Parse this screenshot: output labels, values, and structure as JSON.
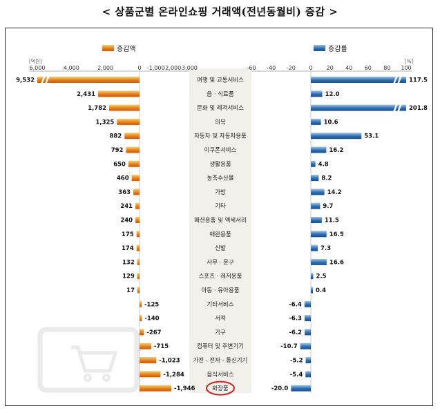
{
  "title": "< 상품군별 온라인쇼핑 거래액(전년동월비) 증감 >",
  "colors": {
    "amount_bar": "#ec7b1c",
    "amount_bar_light": "#f7d35b",
    "rate_bar": "#2b6fb6",
    "rate_bar_light": "#9cc4ec",
    "label_panel": "#f2f0ea",
    "highlight_circle": "#d21e1e"
  },
  "chart_data": [
    {
      "type": "bar",
      "orientation": "horizontal",
      "legend": "증감액",
      "unit": "[억원]",
      "xlim": [
        -3000,
        6000
      ],
      "axis_broken": true,
      "ticks": [
        "6,000",
        "4,000",
        "2,000",
        "0",
        "-1,000",
        "-2,000",
        "-3,000"
      ],
      "tick_values": [
        6000,
        4000,
        2000,
        0,
        -1000,
        -2000,
        -3000
      ],
      "categories": [
        "여행 및 교통서비스",
        "음 · 식료품",
        "문화 및 레저서비스",
        "의복",
        "자동차 및 자동차용품",
        "이쿠폰서비스",
        "생활용품",
        "농축수산물",
        "가방",
        "기타",
        "패션용품 및 액세서리",
        "애완용품",
        "신발",
        "사무 · 문구",
        "스포츠 · 레저용품",
        "아동 · 유아용품",
        "기타서비스",
        "서적",
        "가구",
        "컴퓨터 및 주변기기",
        "가전 · 전자 · 통신기기",
        "음식서비스",
        "화장품"
      ],
      "values": [
        9532,
        2431,
        1782,
        1325,
        882,
        792,
        650,
        460,
        363,
        241,
        240,
        175,
        174,
        132,
        129,
        17,
        -125,
        -140,
        -267,
        -715,
        -1023,
        -1284,
        -1946
      ],
      "labels": [
        "9,532",
        "2,431",
        "1,782",
        "1,325",
        "882",
        "792",
        "650",
        "460",
        "363",
        "241",
        "240",
        "175",
        "174",
        "132",
        "129",
        "17",
        "-125",
        "-140",
        "-267",
        "-715",
        "-1,023",
        "-1,284",
        "-1,946"
      ],
      "highlighted_category": "화장품"
    },
    {
      "type": "bar",
      "orientation": "horizontal",
      "legend": "증감률",
      "unit": "[%]",
      "xlim": [
        -60,
        100
      ],
      "axis_broken": true,
      "ticks": [
        "-60",
        "-40",
        "-20",
        "0",
        "20",
        "40",
        "60",
        "80",
        "100"
      ],
      "tick_values": [
        -60,
        -40,
        -20,
        0,
        20,
        40,
        60,
        80,
        100
      ],
      "values": [
        117.5,
        12.0,
        201.8,
        10.6,
        53.1,
        16.2,
        4.8,
        8.2,
        14.2,
        9.7,
        11.5,
        16.5,
        7.3,
        16.6,
        2.5,
        0.4,
        -6.4,
        -6.3,
        -6.2,
        -10.7,
        -5.2,
        -5.4,
        -20.0
      ],
      "labels": [
        "117.5",
        "12.0",
        "201.8",
        "10.6",
        "53.1",
        "16.2",
        "4.8",
        "8.2",
        "14.2",
        "9.7",
        "11.5",
        "16.5",
        "7.3",
        "16.6",
        "2.5",
        "0.4",
        "-6.4",
        "-6.3",
        "-6.2",
        "-10.7",
        "-5.2",
        "-5.4",
        "-20.0"
      ]
    }
  ]
}
